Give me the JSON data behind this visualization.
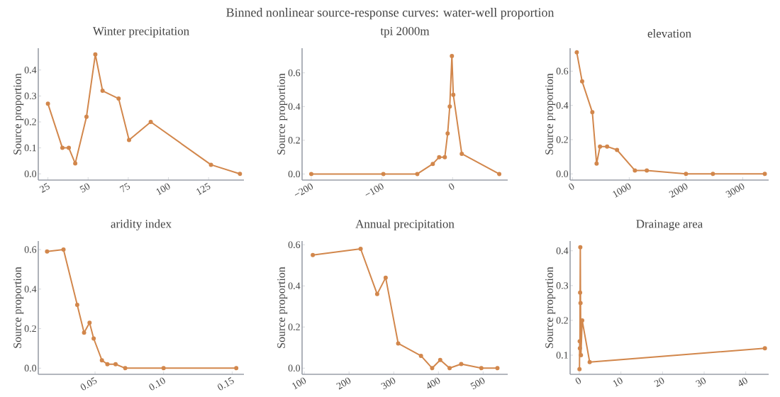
{
  "chart_data": [
    {
      "type": "line",
      "title": "Winter precipitation",
      "ylabel": "Source proportion",
      "annotations": [
        "Binned nonlinear source-response curves: water-well proportion"
      ],
      "color": "#d2874c",
      "marker": "circle",
      "line_style": "solid",
      "grid": false,
      "x": [
        25,
        34,
        38,
        42,
        49,
        54.5,
        59,
        69,
        75.5,
        89,
        126.5,
        144.5
      ],
      "values": [
        0.27,
        0.1,
        0.1,
        0.04,
        0.22,
        0.46,
        0.32,
        0.29,
        0.13,
        0.2,
        0.035,
        0.0
      ],
      "xlim": [
        19,
        147
      ],
      "ylim": [
        -0.024,
        0.484
      ],
      "xticks": [
        25,
        50,
        75,
        100,
        125
      ],
      "yticks": [
        {
          "value": 0,
          "label": "0.0"
        },
        {
          "value": 0.1,
          "label": "0.1"
        },
        {
          "value": 0.2,
          "label": "0.2"
        },
        {
          "value": 0.3,
          "label": "0.3"
        },
        {
          "value": 0.4,
          "label": "0.4"
        }
      ]
    },
    {
      "type": "line",
      "title": "tpi 2000m",
      "ylabel": "Source proportion",
      "color": "#d2874c",
      "marker": "circle",
      "line_style": "solid",
      "grid": false,
      "x": [
        -200,
        -98,
        -50,
        -28,
        -19,
        -11,
        -7,
        -4,
        -1,
        1,
        13,
        66
      ],
      "values": [
        0.0,
        0.0,
        0.0,
        0.06,
        0.1,
        0.1,
        0.24,
        0.4,
        0.7,
        0.47,
        0.12,
        0.0
      ],
      "xlim": [
        -213,
        78
      ],
      "ylim": [
        -0.036,
        0.746
      ],
      "xticks": [
        {
          "value": -200,
          "label": "−200"
        },
        {
          "value": -100,
          "label": "−100"
        },
        0
      ],
      "yticks": [
        {
          "value": 0,
          "label": "0.0"
        },
        {
          "value": 0.2,
          "label": "0.2"
        },
        {
          "value": 0.4,
          "label": "0.4"
        },
        {
          "value": 0.6,
          "label": "0.6"
        }
      ]
    },
    {
      "type": "line",
      "title": "elevation",
      "ylabel": "Source proportion",
      "color": "#d2874c",
      "marker": "circle",
      "line_style": "solid",
      "grid": false,
      "x": [
        75,
        170,
        350,
        425,
        485,
        610,
        785,
        1100,
        1310,
        2000,
        2475,
        3390
      ],
      "values": [
        0.71,
        0.54,
        0.36,
        0.06,
        0.16,
        0.16,
        0.14,
        0.02,
        0.02,
        0.0,
        0.0,
        0.0
      ],
      "xlim": [
        -42,
        3458
      ],
      "ylim": [
        -0.036,
        0.734
      ],
      "xticks": [
        0,
        1000,
        2000,
        3000
      ],
      "yticks": [
        {
          "value": 0,
          "label": "0.0"
        },
        {
          "value": 0.2,
          "label": "0.2"
        },
        {
          "value": 0.4,
          "label": "0.4"
        },
        {
          "value": 0.6,
          "label": "0.6"
        }
      ]
    },
    {
      "type": "line",
      "title": "aridity index",
      "ylabel": "Source proportion",
      "color": "#d2874c",
      "marker": "circle",
      "line_style": "solid",
      "grid": false,
      "x": [
        0.015,
        0.027,
        0.037,
        0.042,
        0.046,
        0.049,
        0.055,
        0.059,
        0.065,
        0.072,
        0.1,
        0.153
      ],
      "values": [
        0.59,
        0.6,
        0.32,
        0.18,
        0.23,
        0.15,
        0.04,
        0.02,
        0.02,
        0.0,
        0.0,
        0.0
      ],
      "xlim": [
        0.0086,
        0.1586
      ],
      "ylim": [
        -0.031,
        0.643
      ],
      "xticks": [
        {
          "value": 0.05,
          "label": "0.05"
        },
        {
          "value": 0.1,
          "label": "0.10"
        },
        {
          "value": 0.15,
          "label": "0.15"
        }
      ],
      "yticks": [
        {
          "value": 0,
          "label": "0.0"
        },
        {
          "value": 0.2,
          "label": "0.2"
        },
        {
          "value": 0.4,
          "label": "0.4"
        },
        {
          "value": 0.6,
          "label": "0.6"
        }
      ]
    },
    {
      "type": "line",
      "title": "Annual precipitation",
      "ylabel": "Source proportion",
      "color": "#d2874c",
      "marker": "circle",
      "line_style": "solid",
      "grid": false,
      "x": [
        119,
        226,
        263,
        282,
        310,
        361,
        386,
        404,
        425,
        451,
        496,
        532
      ],
      "values": [
        0.55,
        0.58,
        0.36,
        0.44,
        0.12,
        0.06,
        0.0,
        0.04,
        0.0,
        0.02,
        0.0,
        0.0
      ],
      "xlim": [
        95,
        555
      ],
      "ylim": [
        -0.03,
        0.618
      ],
      "xticks": [
        100,
        200,
        300,
        400,
        500
      ],
      "yticks": [
        {
          "value": 0,
          "label": "0.0"
        },
        {
          "value": 0.2,
          "label": "0.2"
        },
        {
          "value": 0.4,
          "label": "0.4"
        },
        {
          "value": 0.6,
          "label": "0.6"
        }
      ]
    },
    {
      "type": "line",
      "title": "Drainage area",
      "ylabel": "Source proportion",
      "color": "#d2874c",
      "marker": "circle",
      "line_style": "solid",
      "grid": false,
      "x": [
        0.05,
        0.1,
        0.15,
        0.2,
        0.25,
        0.3,
        0.4,
        0.7,
        2.5,
        44.6
      ],
      "values": [
        0.06,
        0.14,
        0.12,
        0.28,
        0.41,
        0.25,
        0.1,
        0.2,
        0.08,
        0.12
      ],
      "xlim": [
        -2.2,
        45.5
      ],
      "ylim": [
        0.045,
        0.428
      ],
      "xticks": [
        0,
        10,
        20,
        30,
        40
      ],
      "yticks": [
        {
          "value": 0.1,
          "label": "0.1"
        },
        {
          "value": 0.2,
          "label": "0.2"
        },
        {
          "value": 0.3,
          "label": "0.3"
        },
        {
          "value": 0.4,
          "label": "0.4"
        }
      ]
    }
  ]
}
